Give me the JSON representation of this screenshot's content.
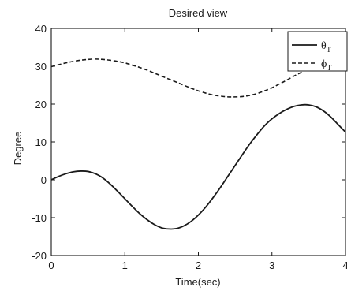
{
  "chart_data": {
    "type": "line",
    "title": "Desired view",
    "xlabel": "Time(sec)",
    "ylabel": "Degree",
    "xlim": [
      0,
      4
    ],
    "ylim": [
      -20,
      40
    ],
    "xticks": [
      "0",
      "1",
      "2",
      "3",
      "4"
    ],
    "yticks": [
      "-20",
      "-10",
      "0",
      "10",
      "20",
      "30",
      "40"
    ],
    "grid": false,
    "legend_position": "top-right",
    "legend": {
      "theta": {
        "symbol": "θ",
        "sub": "T"
      },
      "phi": {
        "symbol": "ϕ",
        "sub": "T"
      }
    },
    "series": [
      {
        "name": "θT",
        "line_style": "solid",
        "x": [
          0,
          0.1,
          0.2,
          0.3,
          0.4,
          0.5,
          0.6,
          0.7,
          0.8,
          0.9,
          1.0,
          1.1,
          1.2,
          1.3,
          1.4,
          1.5,
          1.6,
          1.7,
          1.8,
          1.9,
          2.0,
          2.1,
          2.2,
          2.3,
          2.4,
          2.5,
          2.6,
          2.7,
          2.8,
          2.9,
          3.0,
          3.1,
          3.2,
          3.3,
          3.4,
          3.5,
          3.6,
          3.7,
          3.8,
          3.9,
          4.0
        ],
        "y": [
          0,
          0.9,
          1.6,
          2.1,
          2.3,
          2.2,
          1.6,
          0.5,
          -1.1,
          -3.0,
          -5.0,
          -7.0,
          -8.9,
          -10.5,
          -11.8,
          -12.7,
          -13.0,
          -12.9,
          -12.2,
          -11.0,
          -9.3,
          -7.2,
          -4.7,
          -2.0,
          0.9,
          3.8,
          6.7,
          9.5,
          12.0,
          14.3,
          16.1,
          17.5,
          18.6,
          19.4,
          19.8,
          19.8,
          19.3,
          18.2,
          16.6,
          14.6,
          12.6
        ]
      },
      {
        "name": "ϕT",
        "line_style": "dashed",
        "x": [
          0,
          0.1,
          0.2,
          0.3,
          0.4,
          0.5,
          0.6,
          0.7,
          0.8,
          0.9,
          1.0,
          1.1,
          1.2,
          1.3,
          1.4,
          1.5,
          1.6,
          1.7,
          1.8,
          1.9,
          2.0,
          2.1,
          2.2,
          2.3,
          2.4,
          2.5,
          2.6,
          2.7,
          2.8,
          2.9,
          3.0,
          3.1,
          3.2,
          3.3,
          3.4,
          3.5,
          3.6,
          3.7,
          3.8,
          3.9,
          4.0
        ],
        "y": [
          29.9,
          30.4,
          30.9,
          31.3,
          31.6,
          31.8,
          31.9,
          31.8,
          31.6,
          31.3,
          30.9,
          30.3,
          29.7,
          29.0,
          28.2,
          27.4,
          26.6,
          25.8,
          25.0,
          24.2,
          23.5,
          22.9,
          22.4,
          22.1,
          21.9,
          21.9,
          22.0,
          22.3,
          22.8,
          23.5,
          24.3,
          25.3,
          26.3,
          27.4,
          28.4,
          29.4,
          30.3,
          31.2,
          32.0,
          32.8,
          33.6
        ]
      }
    ]
  }
}
